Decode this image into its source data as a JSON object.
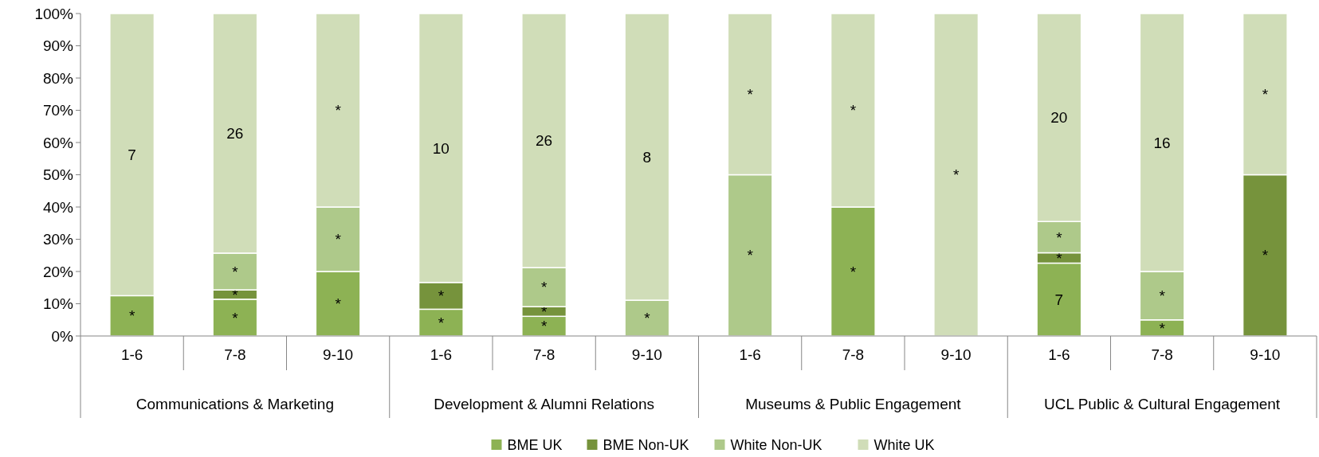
{
  "chart_data": {
    "type": "bar",
    "stacked": true,
    "categories": [
      "1-6",
      "7-8",
      "9-10",
      "1-6",
      "7-8",
      "9-10",
      "1-6",
      "7-8",
      "9-10",
      "1-6",
      "7-8",
      "9-10"
    ],
    "annotations": [
      "Communications & Marketing",
      "Development & Alumni Relations",
      "Museums & Public Engagement",
      "UCL Public & Cultural Engagement",
      "7",
      "26",
      "10",
      "26",
      "8",
      "7",
      "20",
      "16"
    ],
    "series": [
      {
        "name": "BME UK",
        "color": "#8db254",
        "values": [
          12.5,
          11.4,
          20,
          8.3,
          6.1,
          0,
          0,
          40,
          0,
          22.6,
          5,
          0
        ],
        "value_labels": [
          "*",
          "*",
          "*",
          "*",
          "*",
          null,
          null,
          "*",
          null,
          null,
          "*",
          null
        ]
      },
      {
        "name": "BME Non-UK",
        "color": "#76933c",
        "values": [
          0,
          2.9,
          0,
          8.3,
          3.0,
          0,
          0,
          0,
          0,
          3.2,
          0,
          50
        ],
        "value_labels": [
          null,
          "*",
          null,
          "*",
          "*",
          null,
          null,
          null,
          null,
          "*",
          null,
          "*"
        ]
      },
      {
        "name": "White Non-UK",
        "color": "#aec98a",
        "values": [
          0,
          11.4,
          20,
          0,
          12.1,
          11.1,
          50,
          0,
          0,
          9.7,
          15,
          0
        ],
        "value_labels": [
          null,
          "*",
          "*",
          null,
          "*",
          "*",
          "*",
          null,
          null,
          "*",
          "*",
          null
        ]
      },
      {
        "name": "White UK",
        "color": "#d0ddb8",
        "values": [
          87.5,
          74.3,
          60,
          83.4,
          78.8,
          88.9,
          50,
          60,
          100,
          64.5,
          80,
          50
        ],
        "value_labels": [
          null,
          null,
          "*",
          null,
          null,
          null,
          "*",
          "*",
          "*",
          null,
          null,
          "*"
        ]
      }
    ],
    "ylim": [
      0,
      100
    ],
    "yticks": [
      {
        "value": 0,
        "label": "0%"
      },
      {
        "value": 10,
        "label": "10%"
      },
      {
        "value": 20,
        "label": "20%"
      },
      {
        "value": 30,
        "label": "30%"
      },
      {
        "value": 40,
        "label": "40%"
      },
      {
        "value": 50,
        "label": "50%"
      },
      {
        "value": 60,
        "label": "60%"
      },
      {
        "value": 70,
        "label": "70%"
      },
      {
        "value": 80,
        "label": "80%"
      },
      {
        "value": 90,
        "label": "90%"
      },
      {
        "value": 100,
        "label": "100%"
      }
    ],
    "legend": "bottom"
  }
}
